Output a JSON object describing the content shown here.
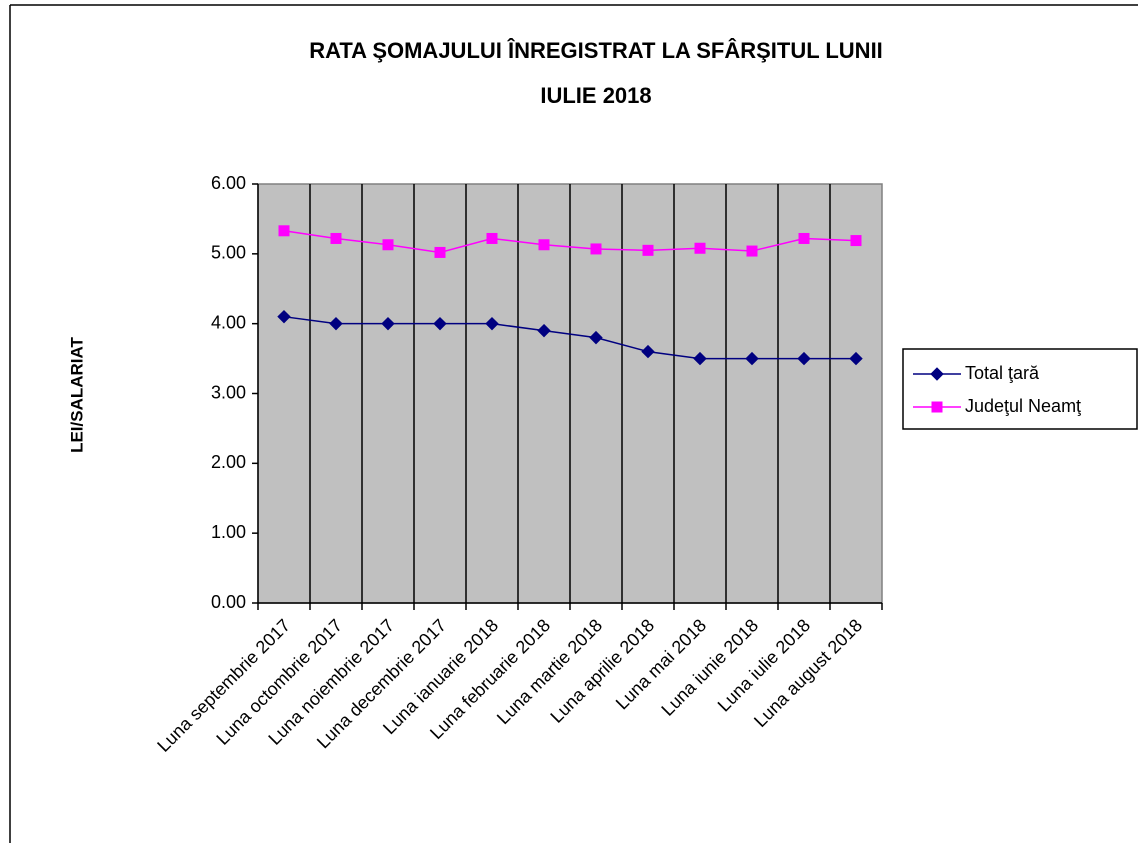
{
  "chart_data": {
    "type": "line",
    "title": [
      "RATA ŞOMAJULUI ÎNREGISTRAT LA SFÂRŞITUL LUNII",
      "IULIE  2018"
    ],
    "y_label": "LEI/SALARIAT",
    "categories": [
      "Luna septembrie 2017",
      "Luna octombrie 2017",
      "Luna noiembrie 2017",
      "Luna decembrie 2017",
      "Luna ianuarie 2018",
      "Luna februarie 2018",
      "Luna martie 2018",
      "Luna aprilie 2018",
      "Luna mai  2018",
      "Luna iunie 2018",
      "Luna iulie 2018",
      "Luna august 2018"
    ],
    "series": [
      {
        "name": "Total ţară",
        "color": "#000080",
        "marker": "diamond",
        "values": [
          4.1,
          4.0,
          4.0,
          4.0,
          4.0,
          3.9,
          3.8,
          3.6,
          3.5,
          3.5,
          3.5,
          3.5
        ]
      },
      {
        "name": "Judeţul Neamţ",
        "color": "#ff00ff",
        "marker": "square",
        "values": [
          5.33,
          5.22,
          5.13,
          5.02,
          5.22,
          5.13,
          5.07,
          5.05,
          5.08,
          5.04,
          5.22,
          5.19
        ]
      }
    ],
    "ylim": [
      0,
      6
    ],
    "yticks": [
      {
        "value": 0,
        "label": "0.00"
      },
      {
        "value": 1,
        "label": "1.00"
      },
      {
        "value": 2,
        "label": "2.00"
      },
      {
        "value": 3,
        "label": "3.00"
      },
      {
        "value": 4,
        "label": "4.00"
      },
      {
        "value": 5,
        "label": "5.00"
      },
      {
        "value": 6,
        "label": "6.00"
      }
    ],
    "plot_background": "#c0c0c0",
    "legend": "right"
  }
}
